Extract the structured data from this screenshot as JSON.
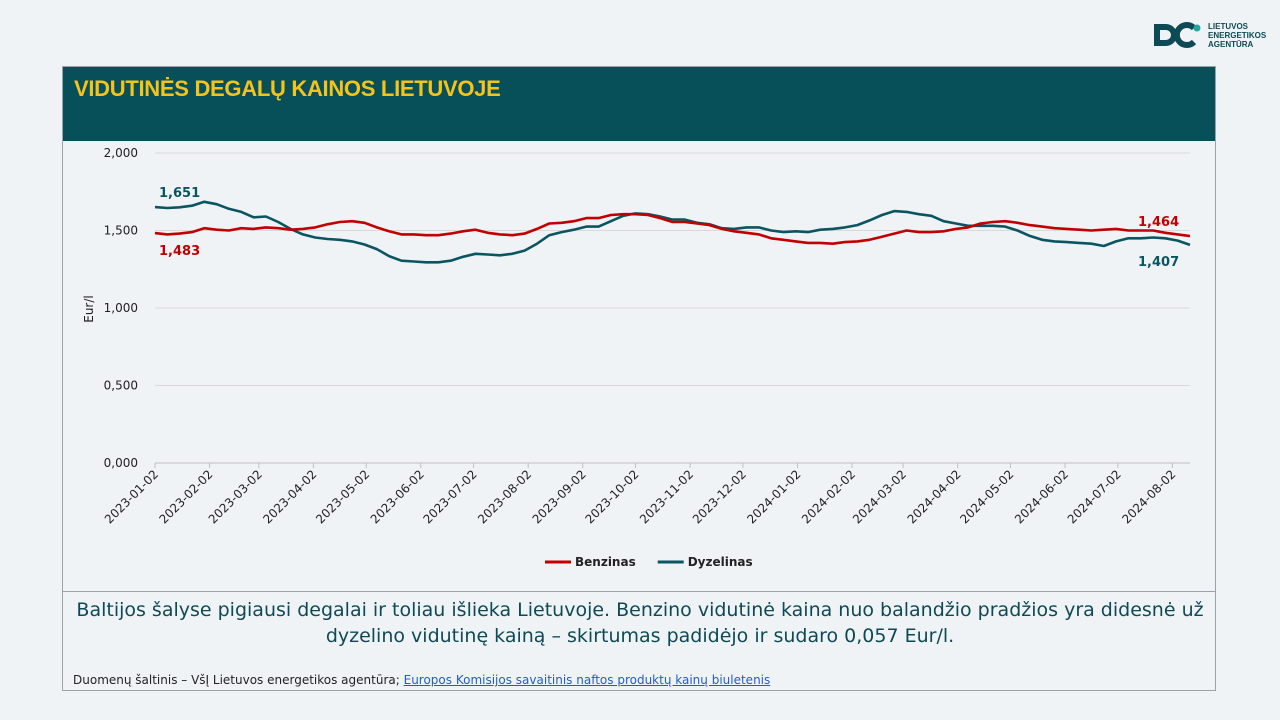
{
  "logo": {
    "text": "LIETUVOS\nENERGETIKOS\nAGENTŪRA",
    "icon": "agency-logo-icon"
  },
  "title": "VIDUTINĖS DEGALŲ KAINOS LIETUVOJE",
  "summary": "Baltijos šalyse pigiausi degalai ir toliau išlieka Lietuvoje. Benzino vidutinė kaina nuo balandžio pradžios yra didesnė už dyzelino vidutinę kainą – skirtumas padidėjo ir sudaro 0,057 Eur/l.",
  "source": {
    "prefix": "Duomenų šaltinis – VšĮ Lietuvos energetikos agentūra; ",
    "link_text": "Europos Komisijos savaitinis naftos produktų kainų biuletenis"
  },
  "chart_data": {
    "type": "line",
    "ylabel": "Eur/l",
    "xlabel": "",
    "ylim": [
      0,
      2
    ],
    "yticks": [
      "0,000",
      "0,500",
      "1,000",
      "1,500",
      "2,000"
    ],
    "grid": true,
    "legend_position": "bottom",
    "x_ticks": [
      "2023-01-02",
      "2023-02-02",
      "2023-03-02",
      "2023-04-02",
      "2023-05-02",
      "2023-06-02",
      "2023-07-02",
      "2023-08-02",
      "2023-09-02",
      "2023-10-02",
      "2023-11-02",
      "2023-12-02",
      "2024-01-02",
      "2024-02-02",
      "2024-03-02",
      "2024-04-02",
      "2024-05-02",
      "2024-06-02",
      "2024-07-02",
      "2024-08-02"
    ],
    "x_start": "2023-01-02",
    "x_end": "2024-08-12",
    "series": [
      {
        "name": "Benzinas",
        "color": "#c00000",
        "start_label": "1,483",
        "end_label": "1,464",
        "points": [
          [
            "2023-01-02",
            1.483
          ],
          [
            "2023-01-09",
            1.475
          ],
          [
            "2023-01-16",
            1.48
          ],
          [
            "2023-01-23",
            1.49
          ],
          [
            "2023-01-30",
            1.515
          ],
          [
            "2023-02-06",
            1.505
          ],
          [
            "2023-02-13",
            1.5
          ],
          [
            "2023-02-20",
            1.515
          ],
          [
            "2023-02-27",
            1.51
          ],
          [
            "2023-03-06",
            1.52
          ],
          [
            "2023-03-13",
            1.515
          ],
          [
            "2023-03-20",
            1.505
          ],
          [
            "2023-03-27",
            1.51
          ],
          [
            "2023-04-03",
            1.52
          ],
          [
            "2023-04-10",
            1.54
          ],
          [
            "2023-04-17",
            1.555
          ],
          [
            "2023-04-24",
            1.56
          ],
          [
            "2023-05-01",
            1.55
          ],
          [
            "2023-05-08",
            1.52
          ],
          [
            "2023-05-15",
            1.495
          ],
          [
            "2023-05-22",
            1.475
          ],
          [
            "2023-05-29",
            1.475
          ],
          [
            "2023-06-05",
            1.47
          ],
          [
            "2023-06-12",
            1.47
          ],
          [
            "2023-06-19",
            1.48
          ],
          [
            "2023-06-26",
            1.495
          ],
          [
            "2023-07-03",
            1.505
          ],
          [
            "2023-07-10",
            1.485
          ],
          [
            "2023-07-17",
            1.475
          ],
          [
            "2023-07-24",
            1.47
          ],
          [
            "2023-07-31",
            1.48
          ],
          [
            "2023-08-07",
            1.51
          ],
          [
            "2023-08-14",
            1.545
          ],
          [
            "2023-08-21",
            1.55
          ],
          [
            "2023-08-28",
            1.56
          ],
          [
            "2023-09-04",
            1.58
          ],
          [
            "2023-09-11",
            1.58
          ],
          [
            "2023-09-18",
            1.6
          ],
          [
            "2023-09-25",
            1.605
          ],
          [
            "2023-10-02",
            1.605
          ],
          [
            "2023-10-09",
            1.6
          ],
          [
            "2023-10-16",
            1.58
          ],
          [
            "2023-10-23",
            1.555
          ],
          [
            "2023-10-30",
            1.555
          ],
          [
            "2023-11-06",
            1.545
          ],
          [
            "2023-11-13",
            1.535
          ],
          [
            "2023-11-20",
            1.51
          ],
          [
            "2023-11-27",
            1.495
          ],
          [
            "2023-12-04",
            1.485
          ],
          [
            "2023-12-11",
            1.475
          ],
          [
            "2023-12-18",
            1.45
          ],
          [
            "2023-12-25",
            1.44
          ],
          [
            "2024-01-01",
            1.43
          ],
          [
            "2024-01-08",
            1.42
          ],
          [
            "2024-01-15",
            1.42
          ],
          [
            "2024-01-22",
            1.415
          ],
          [
            "2024-01-29",
            1.425
          ],
          [
            "2024-02-05",
            1.43
          ],
          [
            "2024-02-12",
            1.44
          ],
          [
            "2024-02-19",
            1.46
          ],
          [
            "2024-02-26",
            1.48
          ],
          [
            "2024-03-04",
            1.5
          ],
          [
            "2024-03-11",
            1.49
          ],
          [
            "2024-03-18",
            1.49
          ],
          [
            "2024-03-25",
            1.495
          ],
          [
            "2024-04-01",
            1.51
          ],
          [
            "2024-04-08",
            1.52
          ],
          [
            "2024-04-15",
            1.545
          ],
          [
            "2024-04-22",
            1.555
          ],
          [
            "2024-04-29",
            1.56
          ],
          [
            "2024-05-06",
            1.55
          ],
          [
            "2024-05-13",
            1.535
          ],
          [
            "2024-05-20",
            1.525
          ],
          [
            "2024-05-27",
            1.515
          ],
          [
            "2024-06-03",
            1.51
          ],
          [
            "2024-06-10",
            1.505
          ],
          [
            "2024-06-17",
            1.5
          ],
          [
            "2024-06-24",
            1.505
          ],
          [
            "2024-07-01",
            1.51
          ],
          [
            "2024-07-08",
            1.5
          ],
          [
            "2024-07-15",
            1.5
          ],
          [
            "2024-07-22",
            1.5
          ],
          [
            "2024-07-29",
            1.485
          ],
          [
            "2024-08-05",
            1.475
          ],
          [
            "2024-08-12",
            1.464
          ]
        ]
      },
      {
        "name": "Dyzelinas",
        "color": "#0b5560",
        "start_label": "1,651",
        "end_label": "1,407",
        "points": [
          [
            "2023-01-02",
            1.651
          ],
          [
            "2023-01-09",
            1.645
          ],
          [
            "2023-01-16",
            1.65
          ],
          [
            "2023-01-23",
            1.66
          ],
          [
            "2023-01-30",
            1.685
          ],
          [
            "2023-02-06",
            1.67
          ],
          [
            "2023-02-13",
            1.64
          ],
          [
            "2023-02-20",
            1.62
          ],
          [
            "2023-02-27",
            1.585
          ],
          [
            "2023-03-06",
            1.59
          ],
          [
            "2023-03-13",
            1.555
          ],
          [
            "2023-03-20",
            1.51
          ],
          [
            "2023-03-27",
            1.475
          ],
          [
            "2023-04-03",
            1.455
          ],
          [
            "2023-04-10",
            1.445
          ],
          [
            "2023-04-17",
            1.44
          ],
          [
            "2023-04-24",
            1.43
          ],
          [
            "2023-05-01",
            1.41
          ],
          [
            "2023-05-08",
            1.38
          ],
          [
            "2023-05-15",
            1.335
          ],
          [
            "2023-05-22",
            1.305
          ],
          [
            "2023-05-29",
            1.3
          ],
          [
            "2023-06-05",
            1.295
          ],
          [
            "2023-06-12",
            1.295
          ],
          [
            "2023-06-19",
            1.305
          ],
          [
            "2023-06-26",
            1.33
          ],
          [
            "2023-07-03",
            1.35
          ],
          [
            "2023-07-10",
            1.345
          ],
          [
            "2023-07-17",
            1.34
          ],
          [
            "2023-07-24",
            1.35
          ],
          [
            "2023-07-31",
            1.37
          ],
          [
            "2023-08-07",
            1.415
          ],
          [
            "2023-08-14",
            1.47
          ],
          [
            "2023-08-21",
            1.49
          ],
          [
            "2023-08-28",
            1.505
          ],
          [
            "2023-09-04",
            1.525
          ],
          [
            "2023-09-11",
            1.525
          ],
          [
            "2023-09-18",
            1.56
          ],
          [
            "2023-09-25",
            1.595
          ],
          [
            "2023-10-02",
            1.61
          ],
          [
            "2023-10-09",
            1.605
          ],
          [
            "2023-10-16",
            1.59
          ],
          [
            "2023-10-23",
            1.57
          ],
          [
            "2023-10-30",
            1.57
          ],
          [
            "2023-11-06",
            1.55
          ],
          [
            "2023-11-13",
            1.54
          ],
          [
            "2023-11-20",
            1.515
          ],
          [
            "2023-11-27",
            1.51
          ],
          [
            "2023-12-04",
            1.52
          ],
          [
            "2023-12-11",
            1.52
          ],
          [
            "2023-12-18",
            1.5
          ],
          [
            "2023-12-25",
            1.49
          ],
          [
            "2024-01-01",
            1.495
          ],
          [
            "2024-01-08",
            1.49
          ],
          [
            "2024-01-15",
            1.505
          ],
          [
            "2024-01-22",
            1.51
          ],
          [
            "2024-01-29",
            1.52
          ],
          [
            "2024-02-05",
            1.535
          ],
          [
            "2024-02-12",
            1.565
          ],
          [
            "2024-02-19",
            1.6
          ],
          [
            "2024-02-26",
            1.625
          ],
          [
            "2024-03-04",
            1.62
          ],
          [
            "2024-03-11",
            1.605
          ],
          [
            "2024-03-18",
            1.595
          ],
          [
            "2024-03-25",
            1.56
          ],
          [
            "2024-04-01",
            1.545
          ],
          [
            "2024-04-08",
            1.53
          ],
          [
            "2024-04-15",
            1.53
          ],
          [
            "2024-04-22",
            1.53
          ],
          [
            "2024-04-29",
            1.525
          ],
          [
            "2024-05-06",
            1.5
          ],
          [
            "2024-05-13",
            1.465
          ],
          [
            "2024-05-20",
            1.44
          ],
          [
            "2024-05-27",
            1.43
          ],
          [
            "2024-06-03",
            1.425
          ],
          [
            "2024-06-10",
            1.42
          ],
          [
            "2024-06-17",
            1.415
          ],
          [
            "2024-06-24",
            1.4
          ],
          [
            "2024-07-01",
            1.43
          ],
          [
            "2024-07-08",
            1.45
          ],
          [
            "2024-07-15",
            1.45
          ],
          [
            "2024-07-22",
            1.455
          ],
          [
            "2024-07-29",
            1.45
          ],
          [
            "2024-08-05",
            1.435
          ],
          [
            "2024-08-12",
            1.407
          ]
        ]
      }
    ]
  }
}
